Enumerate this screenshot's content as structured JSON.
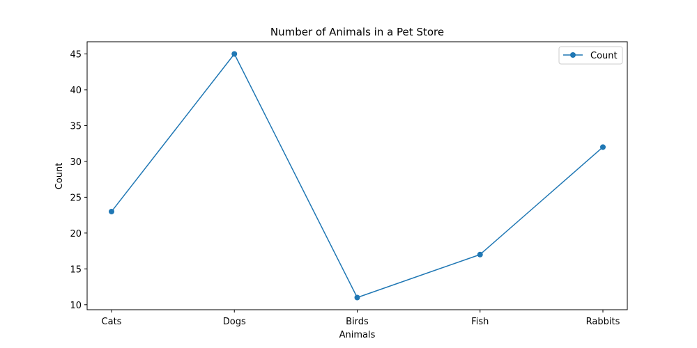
{
  "chart_data": {
    "type": "line",
    "title": "Number of Animals in a Pet Store",
    "xlabel": "Animals",
    "ylabel": "Count",
    "categories": [
      "Cats",
      "Dogs",
      "Birds",
      "Fish",
      "Rabbits"
    ],
    "series": [
      {
        "name": "Count",
        "values": [
          23,
          45,
          11,
          17,
          32
        ],
        "color": "#1f77b4",
        "marker": "circle"
      }
    ],
    "ylim": [
      9.3,
      46.7
    ],
    "yticks": [
      10,
      15,
      20,
      25,
      30,
      35,
      40,
      45
    ],
    "grid": false,
    "legend_position": "top-right"
  }
}
